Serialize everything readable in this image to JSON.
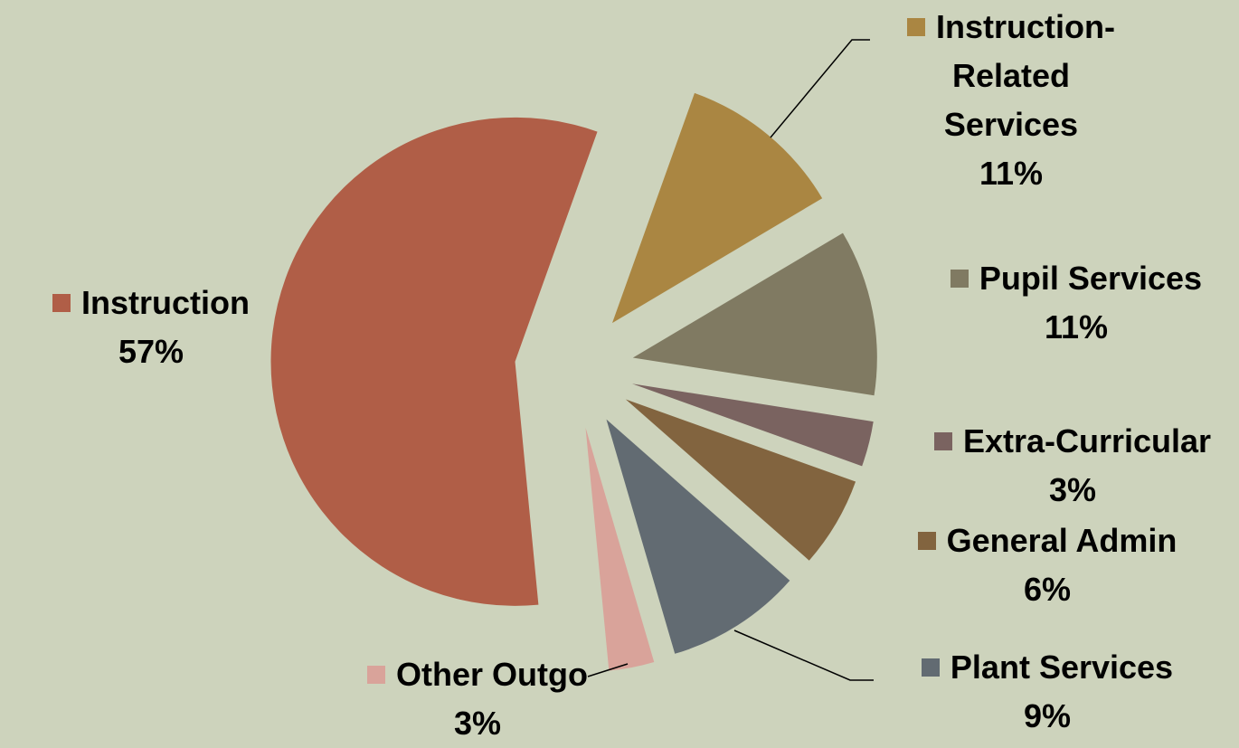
{
  "chart_data": {
    "type": "pie",
    "categories": [
      "Instruction-Related Services",
      "Pupil Services",
      "Extra-Curricular",
      "General Admin",
      "Plant Services",
      "Other Outgo",
      "Instruction"
    ],
    "values": [
      11,
      11,
      3,
      6,
      9,
      3,
      57
    ],
    "value_labels": [
      "11%",
      "11%",
      "3%",
      "6%",
      "9%",
      "3%",
      "57%"
    ],
    "colors": [
      "#aa8642",
      "#807a62",
      "#7a6360",
      "#82643f",
      "#626b72",
      "#d9a39a",
      "#b05e47"
    ]
  }
}
